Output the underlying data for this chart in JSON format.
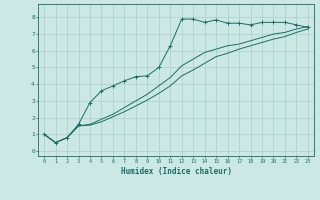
{
  "xlabel": "Humidex (Indice chaleur)",
  "bg_color": "#cce8e4",
  "grid_color": "#aacfcc",
  "line_color": "#1a6e65",
  "xlim": [
    -0.5,
    23.5
  ],
  "ylim": [
    -0.3,
    8.8
  ],
  "xticks": [
    0,
    1,
    2,
    3,
    4,
    5,
    6,
    7,
    8,
    9,
    10,
    11,
    12,
    13,
    14,
    15,
    16,
    17,
    18,
    19,
    20,
    21,
    22,
    23
  ],
  "yticks": [
    0,
    1,
    2,
    3,
    4,
    5,
    6,
    7,
    8
  ],
  "series1_x": [
    0,
    1,
    2,
    3,
    4,
    5,
    6,
    7,
    8,
    9,
    10,
    11,
    12,
    13,
    14,
    15,
    16,
    17,
    18,
    19,
    20,
    21,
    22,
    23
  ],
  "series1_y": [
    1.0,
    0.5,
    0.8,
    1.6,
    2.9,
    3.6,
    3.9,
    4.2,
    4.45,
    4.5,
    5.0,
    6.3,
    7.9,
    7.9,
    7.7,
    7.85,
    7.65,
    7.65,
    7.55,
    7.7,
    7.7,
    7.7,
    7.55,
    7.4
  ],
  "series2_x": [
    0,
    1,
    2,
    3,
    4,
    5,
    6,
    7,
    8,
    9,
    10,
    11,
    12,
    13,
    14,
    15,
    16,
    17,
    18,
    19,
    20,
    21,
    22,
    23
  ],
  "series2_y": [
    1.0,
    0.5,
    0.8,
    1.5,
    1.6,
    1.9,
    2.2,
    2.6,
    3.0,
    3.4,
    3.9,
    4.4,
    5.1,
    5.5,
    5.9,
    6.1,
    6.3,
    6.4,
    6.6,
    6.8,
    7.0,
    7.1,
    7.3,
    7.45
  ],
  "series3_x": [
    0,
    1,
    2,
    3,
    4,
    5,
    6,
    7,
    8,
    9,
    10,
    11,
    12,
    13,
    14,
    15,
    16,
    17,
    18,
    19,
    20,
    21,
    22,
    23
  ],
  "series3_y": [
    1.0,
    0.5,
    0.8,
    1.5,
    1.55,
    1.75,
    2.05,
    2.35,
    2.7,
    3.05,
    3.45,
    3.9,
    4.5,
    4.85,
    5.25,
    5.65,
    5.85,
    6.1,
    6.3,
    6.5,
    6.7,
    6.85,
    7.1,
    7.3
  ]
}
